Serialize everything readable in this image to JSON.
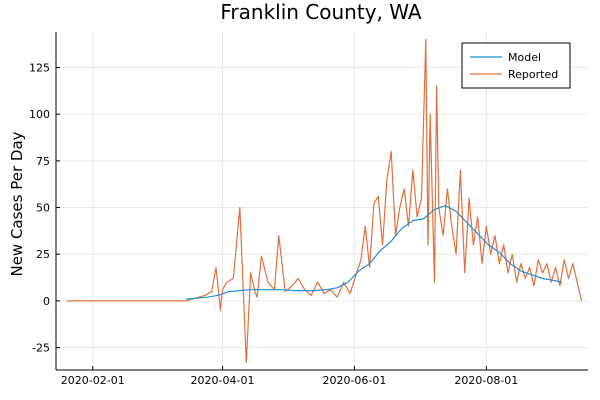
{
  "chart_data": {
    "type": "line",
    "title": "Franklin County, WA",
    "xlabel": "",
    "ylabel": "New Cases Per Day",
    "x_axis": "date",
    "xlim": [
      "2020-01-15",
      "2020-09-17"
    ],
    "ylim": [
      -37,
      144
    ],
    "x_ticks": [
      "2020-02-01",
      "2020-04-01",
      "2020-06-01",
      "2020-08-01"
    ],
    "y_ticks": [
      -25,
      0,
      25,
      50,
      75,
      100,
      125
    ],
    "grid": true,
    "legend_position": "top-right",
    "colors": {
      "Model": "#1f8fd6",
      "Reported": "#e26f3a"
    },
    "series": [
      {
        "name": "Model",
        "x": [
          "2020-03-15",
          "2020-03-20",
          "2020-03-25",
          "2020-03-30",
          "2020-04-04",
          "2020-04-09",
          "2020-04-14",
          "2020-04-19",
          "2020-04-24",
          "2020-04-29",
          "2020-05-04",
          "2020-05-09",
          "2020-05-14",
          "2020-05-19",
          "2020-05-24",
          "2020-05-29",
          "2020-06-03",
          "2020-06-08",
          "2020-06-13",
          "2020-06-18",
          "2020-06-23",
          "2020-06-28",
          "2020-07-03",
          "2020-07-08",
          "2020-07-13",
          "2020-07-18",
          "2020-07-23",
          "2020-07-28",
          "2020-08-02",
          "2020-08-07",
          "2020-08-12",
          "2020-08-17",
          "2020-08-22",
          "2020-08-27",
          "2020-09-01",
          "2020-09-05"
        ],
        "values": [
          1,
          1.5,
          2,
          3,
          5,
          5.5,
          6,
          6,
          6,
          6,
          5.5,
          5.5,
          5.5,
          6,
          7,
          10,
          16,
          20,
          27,
          32,
          39,
          43,
          44,
          49,
          51,
          48,
          42,
          36,
          30,
          26,
          20,
          16,
          14,
          12,
          11,
          10
        ]
      },
      {
        "name": "Reported",
        "x": [
          "2020-01-20",
          "2020-02-01",
          "2020-02-15",
          "2020-03-01",
          "2020-03-15",
          "2020-03-18",
          "2020-03-21",
          "2020-03-24",
          "2020-03-27",
          "2020-03-29",
          "2020-03-31",
          "2020-04-01",
          "2020-04-03",
          "2020-04-06",
          "2020-04-09",
          "2020-04-12",
          "2020-04-14",
          "2020-04-16",
          "2020-04-17",
          "2020-04-19",
          "2020-04-22",
          "2020-04-25",
          "2020-04-27",
          "2020-04-30",
          "2020-05-03",
          "2020-05-06",
          "2020-05-09",
          "2020-05-12",
          "2020-05-15",
          "2020-05-18",
          "2020-05-21",
          "2020-05-24",
          "2020-05-27",
          "2020-05-30",
          "2020-06-02",
          "2020-06-04",
          "2020-06-06",
          "2020-06-08",
          "2020-06-10",
          "2020-06-12",
          "2020-06-14",
          "2020-06-16",
          "2020-06-18",
          "2020-06-20",
          "2020-06-22",
          "2020-06-24",
          "2020-06-26",
          "2020-06-28",
          "2020-06-30",
          "2020-07-02",
          "2020-07-04",
          "2020-07-05",
          "2020-07-06",
          "2020-07-08",
          "2020-07-09",
          "2020-07-10",
          "2020-07-12",
          "2020-07-14",
          "2020-07-16",
          "2020-07-18",
          "2020-07-20",
          "2020-07-22",
          "2020-07-24",
          "2020-07-26",
          "2020-07-28",
          "2020-07-30",
          "2020-08-01",
          "2020-08-03",
          "2020-08-05",
          "2020-08-07",
          "2020-08-09",
          "2020-08-11",
          "2020-08-13",
          "2020-08-15",
          "2020-08-17",
          "2020-08-19",
          "2020-08-21",
          "2020-08-23",
          "2020-08-25",
          "2020-08-27",
          "2020-08-29",
          "2020-08-31",
          "2020-09-02",
          "2020-09-04",
          "2020-09-06",
          "2020-09-08",
          "2020-09-10",
          "2020-09-12",
          "2020-09-14"
        ],
        "values": [
          0,
          0,
          0,
          0,
          0,
          1,
          2,
          3,
          5,
          18,
          -5,
          6,
          10,
          12,
          50,
          -33,
          15,
          5,
          2,
          24,
          10,
          6,
          35,
          5,
          8,
          12,
          6,
          3,
          10,
          4,
          6,
          2,
          10,
          4,
          15,
          22,
          40,
          18,
          52,
          56,
          30,
          65,
          80,
          35,
          50,
          60,
          40,
          70,
          45,
          55,
          140,
          30,
          100,
          10,
          115,
          50,
          35,
          60,
          40,
          25,
          70,
          15,
          55,
          30,
          45,
          20,
          40,
          25,
          35,
          20,
          30,
          15,
          25,
          10,
          20,
          12,
          18,
          8,
          22,
          15,
          20,
          10,
          18,
          8,
          22,
          12,
          20,
          10,
          0
        ]
      }
    ]
  }
}
